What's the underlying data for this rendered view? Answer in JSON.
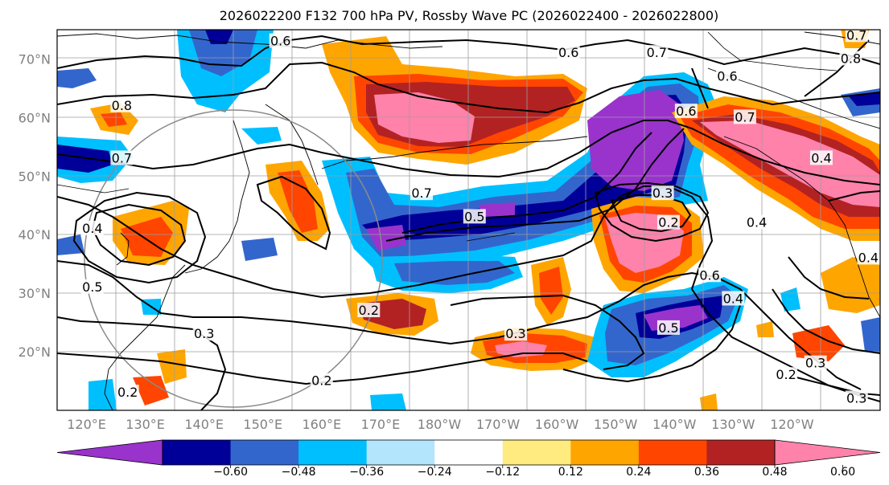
{
  "title": "2026022200 F132 700 hPa PV, Rossby Wave PC (2026022400 - 2026022800)",
  "lat_labels": [
    "20°N",
    "30°N",
    "40°N",
    "50°N",
    "60°N",
    "70°N"
  ],
  "lon_labels": [
    "120°E",
    "130°E",
    "140°E",
    "150°E",
    "160°E",
    "170°E",
    "180°W",
    "170°W",
    "160°W",
    "150°W",
    "140°W",
    "130°W",
    "120°W"
  ],
  "map_extent": {
    "lon": [
      115,
      255
    ],
    "lat": [
      10,
      75
    ]
  },
  "colorbar": {
    "colors": [
      "#9933cc",
      "#000099",
      "#3366cc",
      "#00bfff",
      "#b3e5fc",
      "#ffffff",
      "#ffeb7f",
      "#ffa500",
      "#ff4500",
      "#b22222",
      "#ff82ab"
    ],
    "tick_labels": [
      "−0.60",
      "−0.48",
      "−0.36",
      "−0.24",
      "−0.12",
      "0.12",
      "0.24",
      "0.36",
      "0.48",
      "0.60"
    ]
  },
  "contour_labels": [
    {
      "text": "0.6",
      "lon": 153,
      "lat": 73
    },
    {
      "text": "0.8",
      "lon": 126,
      "lat": 62
    },
    {
      "text": "0.7",
      "lon": 126,
      "lat": 53
    },
    {
      "text": "0.4",
      "lon": 121,
      "lat": 41
    },
    {
      "text": "0.5",
      "lon": 121,
      "lat": 31
    },
    {
      "text": "0.3",
      "lon": 140,
      "lat": 23
    },
    {
      "text": "0.2",
      "lon": 127,
      "lat": 13
    },
    {
      "text": "0.2",
      "lon": 160,
      "lat": 15
    },
    {
      "text": "0.2",
      "lon": 168,
      "lat": 27
    },
    {
      "text": "0.7",
      "lon": 177,
      "lat": 47
    },
    {
      "text": "0.5",
      "lon": 186,
      "lat": 43
    },
    {
      "text": "0.6",
      "lon": 202,
      "lat": 71
    },
    {
      "text": "0.7",
      "lon": 217,
      "lat": 71
    },
    {
      "text": "0.6",
      "lon": 229,
      "lat": 67
    },
    {
      "text": "0.6",
      "lon": 222,
      "lat": 61
    },
    {
      "text": "0.7",
      "lon": 232,
      "lat": 60
    },
    {
      "text": "0.4",
      "lon": 245,
      "lat": 53
    },
    {
      "text": "0.3",
      "lon": 218,
      "lat": 47
    },
    {
      "text": "0.2",
      "lon": 219,
      "lat": 42
    },
    {
      "text": "0.4",
      "lon": 234,
      "lat": 42
    },
    {
      "text": "0.6",
      "lon": 226,
      "lat": 33
    },
    {
      "text": "0.4",
      "lon": 230,
      "lat": 29
    },
    {
      "text": "0.5",
      "lon": 219,
      "lat": 24
    },
    {
      "text": "0.3",
      "lon": 193,
      "lat": 23
    },
    {
      "text": "0.3",
      "lon": 244,
      "lat": 18
    },
    {
      "text": "0.2",
      "lon": 239,
      "lat": 16
    },
    {
      "text": "0.3",
      "lon": 251,
      "lat": 12
    },
    {
      "text": "0.8",
      "lon": 250,
      "lat": 70
    },
    {
      "text": "0.7",
      "lon": 251,
      "lat": 74
    },
    {
      "text": "0.4",
      "lon": 253,
      "lat": 36
    }
  ]
}
